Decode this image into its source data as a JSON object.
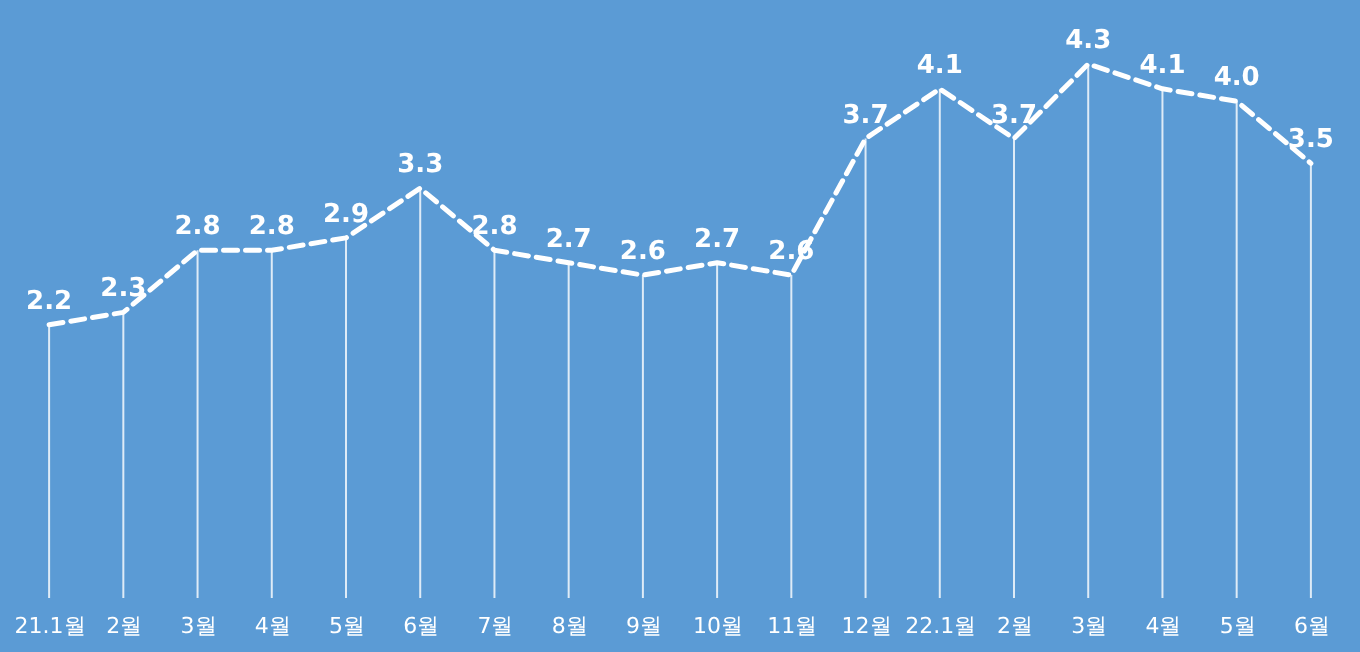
{
  "chart_data": {
    "type": "line",
    "categories": [
      "21.1월",
      "2월",
      "3월",
      "4월",
      "5월",
      "6월",
      "7월",
      "8월",
      "9월",
      "10월",
      "11월",
      "12월",
      "22.1월",
      "2월",
      "3월",
      "4월",
      "5월",
      "6월"
    ],
    "values": [
      2.2,
      2.3,
      2.8,
      2.8,
      2.9,
      3.3,
      2.8,
      2.7,
      2.6,
      2.7,
      2.6,
      3.7,
      4.1,
      3.7,
      4.3,
      4.1,
      4.0,
      3.5
    ],
    "value_labels": [
      "2.2",
      "2.3",
      "2.8",
      "2.8",
      "2.9",
      "3.3",
      "2.8",
      "2.7",
      "2.6",
      "2.7",
      "2.6",
      "3.7",
      "4.1",
      "3.7",
      "4.3",
      "4.1",
      "4.0",
      "3.5"
    ],
    "color": "#ffffff",
    "line_style": "dashed",
    "grid": "x"
  }
}
